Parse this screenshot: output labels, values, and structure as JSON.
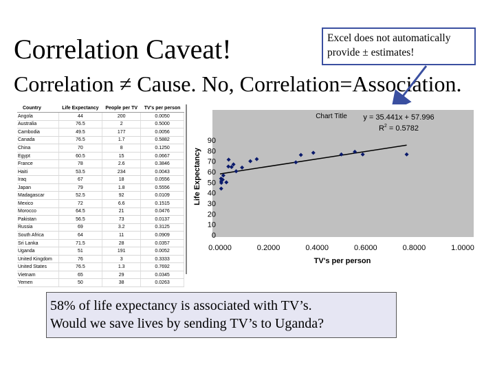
{
  "slide": {
    "title": "Correlation Caveat!",
    "subtitle": "Correlation ≠ Cause.  No, Correlation=Association.",
    "callout_lines": [
      "Excel does not automatically",
      "provide ± estimates!"
    ],
    "answer_lines": [
      "58% of life expectancy is associated with TV’s.",
      "Would we save lives by sending TV’s to Uganda?"
    ]
  },
  "table": {
    "headers": [
      "Country",
      "Life Expectancy",
      "People per TV",
      "TV's per person"
    ],
    "rows": [
      [
        "Angola",
        "44",
        "200",
        "0.0050"
      ],
      [
        "Australia",
        "76.5",
        "2",
        "0.5000"
      ],
      [
        "Cambodia",
        "49.5",
        "177",
        "0.0056"
      ],
      [
        "Canada",
        "76.5",
        "1.7",
        "0.5882"
      ],
      [
        "China",
        "70",
        "8",
        "0.1250"
      ],
      [
        "Egypt",
        "60.5",
        "15",
        "0.0667"
      ],
      [
        "France",
        "78",
        "2.6",
        "0.3846"
      ],
      [
        "Haiti",
        "53.5",
        "234",
        "0.0043"
      ],
      [
        "Iraq",
        "67",
        "18",
        "0.0556"
      ],
      [
        "Japan",
        "79",
        "1.8",
        "0.5556"
      ],
      [
        "Madagascar",
        "52.5",
        "92",
        "0.0109"
      ],
      [
        "Mexico",
        "72",
        "6.6",
        "0.1515"
      ],
      [
        "Morocco",
        "64.5",
        "21",
        "0.0476"
      ],
      [
        "Pakistan",
        "56.5",
        "73",
        "0.0137"
      ],
      [
        "Russia",
        "69",
        "3.2",
        "0.3125"
      ],
      [
        "South Africa",
        "64",
        "11",
        "0.0909"
      ],
      [
        "Sri Lanka",
        "71.5",
        "28",
        "0.0357"
      ],
      [
        "Uganda",
        "51",
        "191",
        "0.0052"
      ],
      [
        "United Kingdom",
        "76",
        "3",
        "0.3333"
      ],
      [
        "United States",
        "76.5",
        "1.3",
        "0.7692"
      ],
      [
        "Vietnam",
        "65",
        "29",
        "0.0345"
      ],
      [
        "Yemen",
        "50",
        "38",
        "0.0263"
      ]
    ]
  },
  "chart_data": {
    "type": "scatter",
    "title": "Chart Title",
    "xlabel": "TV's per person",
    "ylabel": "Life Expectancy",
    "xlim": [
      0,
      1
    ],
    "ylim": [
      0,
      90
    ],
    "xticks": [
      "0.0000",
      "0.2000",
      "0.4000",
      "0.6000",
      "0.8000",
      "1.0000"
    ],
    "yticks": [
      "0",
      "10",
      "20",
      "30",
      "40",
      "50",
      "60",
      "70",
      "80",
      "90"
    ],
    "equation": "y = 35.441x + 57.996",
    "r2_prefix": "R",
    "r2_suffix": " = 0.5782",
    "trendline": {
      "slope": 35.441,
      "intercept": 57.996
    },
    "x": [
      0.005,
      0.5,
      0.0056,
      0.5882,
      0.125,
      0.0667,
      0.3846,
      0.0043,
      0.0556,
      0.5556,
      0.0109,
      0.1515,
      0.0476,
      0.0137,
      0.3125,
      0.0909,
      0.0357,
      0.0052,
      0.3333,
      0.7692,
      0.0345,
      0.0263
    ],
    "y": [
      44,
      76.5,
      49.5,
      76.5,
      70,
      60.5,
      78,
      53.5,
      67,
      79,
      52.5,
      72,
      64.5,
      56.5,
      69,
      64,
      71.5,
      51,
      76,
      76.5,
      65,
      50
    ],
    "colors": {
      "plot_bg": "#c0c0c0",
      "points": "#0a1a6b",
      "line": "#000000"
    }
  }
}
